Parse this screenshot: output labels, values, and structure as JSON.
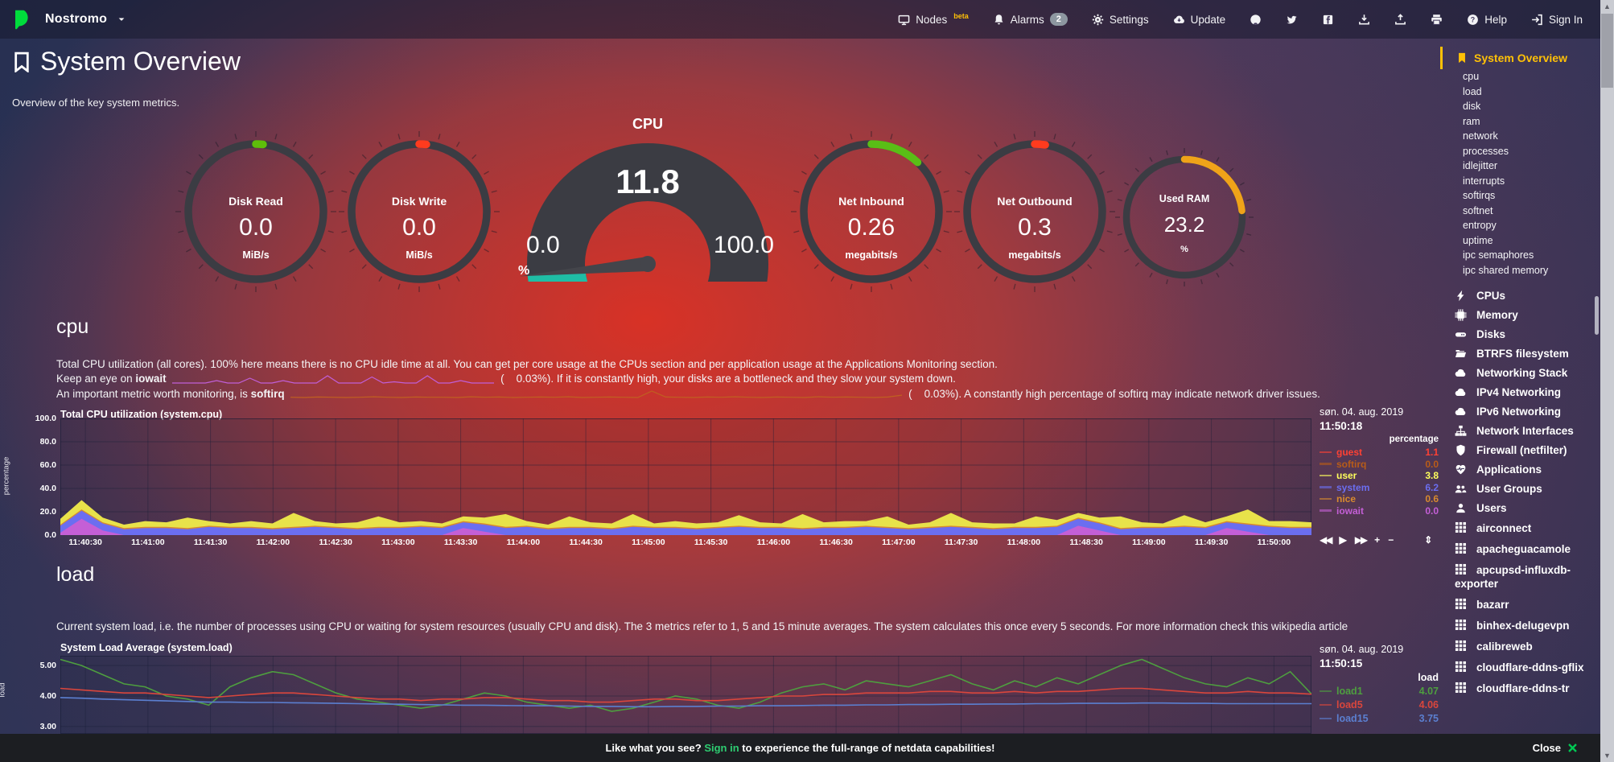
{
  "topbar": {
    "hostname": "Nostromo",
    "nodes_label": "Nodes",
    "nodes_beta": "beta",
    "alarms_label": "Alarms",
    "alarms_badge": "2",
    "settings_label": "Settings",
    "update_label": "Update",
    "help_label": "Help",
    "signin_label": "Sign In"
  },
  "header": {
    "title": "System Overview",
    "subtitle": "Overview of the key system metrics."
  },
  "gauges": {
    "disk_read": {
      "label": "Disk Read",
      "value": "0.0",
      "unit": "MiB/s",
      "color": "#5ebe0a",
      "pct": 1.6
    },
    "disk_write": {
      "label": "Disk Write",
      "value": "0.0",
      "unit": "MiB/s",
      "color": "#ff3b1e",
      "pct": 1.6
    },
    "net_inbound": {
      "label": "Net Inbound",
      "value": "0.26",
      "unit": "megabits/s",
      "color": "#5abe16",
      "pct": 12
    },
    "net_outbound": {
      "label": "Net Outbound",
      "value": "0.3",
      "unit": "megabits/s",
      "color": "#ff3b1e",
      "pct": 2.5
    },
    "used_ram": {
      "label": "Used RAM",
      "value": "23.2",
      "unit": "%",
      "color": "#efa319",
      "pct": 23.2
    },
    "cpu": {
      "label": "CPU",
      "value": "11.8",
      "min": "0.0",
      "max": "100.0",
      "unit": "%",
      "pct": 11.8,
      "fill": "#1fbda5",
      "body": "#3b3c43"
    }
  },
  "cpu_section": {
    "heading": "cpu",
    "p1": "Total CPU utilization (all cores). 100% here means there is no CPU idle time at all. You can get per core usage at the CPUs section and per application usage at the Applications Monitoring section.",
    "p2_pre": "Keep an eye on ",
    "p2_bold": "iowait",
    "p2_paren": "(    0.03%).",
    "p2_post": " If it is constantly high, your disks are a bottleneck and they slow your system down.",
    "p3_pre": "An important metric worth monitoring, is ",
    "p3_bold": "softirq",
    "p3_paren": "(    0.03%).",
    "p3_post": " A constantly high percentage of softirq may indicate network driver issues.",
    "iowait_spark": {
      "color": "#c05fd8",
      "values": [
        0,
        0,
        0,
        0,
        1,
        0,
        0,
        2,
        0,
        0,
        1,
        0,
        0,
        0,
        3,
        0,
        0,
        0,
        2.5,
        0,
        0.5,
        0,
        0,
        3,
        0,
        0,
        1,
        0,
        0,
        0
      ]
    },
    "softirq_spark": {
      "color": "#c06020",
      "values": [
        0.4,
        0.3,
        0.5,
        0.4,
        0.3,
        0.4,
        0.6,
        0.4,
        0.3,
        0.5,
        0.4,
        0.4,
        0.3,
        0.6,
        0.4,
        0.5,
        0.3,
        0.4,
        0.5,
        0.4,
        0.6,
        0.3,
        0.4,
        0.5,
        0.4,
        0.3,
        2.8,
        0.5,
        0.4,
        0.3,
        0.5,
        0.4,
        0.6,
        0.4,
        0.3,
        0.5,
        0.4,
        0.3,
        0.6,
        0.4,
        0.5,
        0.4,
        0.3,
        0.5,
        1.2
      ]
    }
  },
  "load_section": {
    "heading": "load",
    "p1": "Current system load, i.e. the number of processes using CPU or waiting for system resources (usually CPU and disk). The 3 metrics refer to 1, 5 and 15 minute averages. The system calculates this once every 5 seconds. For more information check this wikipedia article"
  },
  "chart_data": [
    {
      "type": "area",
      "stacked": true,
      "title": "Total CPU utilization (system.cpu)",
      "date": "søn. 04. aug. 2019",
      "time": "11:50:18",
      "unit": "percentage",
      "ylabel": "percentage",
      "ylim": [
        0,
        100
      ],
      "grid_values": [
        0,
        20,
        40,
        60,
        80,
        100
      ],
      "yticks": [
        {
          "label": "100.0",
          "value": 100
        },
        {
          "label": "80.0",
          "value": 80
        },
        {
          "label": "60.0",
          "value": 60
        },
        {
          "label": "40.0",
          "value": 40
        },
        {
          "label": "20.0",
          "value": 20
        },
        {
          "label": "0.0",
          "value": 0
        }
      ],
      "x_first_offset_s": 12,
      "x_step_s": 30,
      "x_span_s": 600,
      "xticks": [
        "11:40:30",
        "11:41:00",
        "11:41:30",
        "11:42:00",
        "11:42:30",
        "11:43:00",
        "11:43:30",
        "11:44:00",
        "11:44:30",
        "11:45:00",
        "11:45:30",
        "11:46:00",
        "11:46:30",
        "11:47:00",
        "11:47:30",
        "11:48:00",
        "11:48:30",
        "11:49:00",
        "11:49:30",
        "11:50:00"
      ],
      "legend": [
        {
          "name": "guest",
          "value": "1.1",
          "color": "#ff4133"
        },
        {
          "name": "softirq",
          "value": "0.0",
          "color": "#b85c18"
        },
        {
          "name": "user",
          "value": "3.8",
          "color": "#e8e24a",
          "emph": true
        },
        {
          "name": "system",
          "value": "6.2",
          "color": "#6b6ef0"
        },
        {
          "name": "nice",
          "value": "0.6",
          "color": "#d88a2e"
        },
        {
          "name": "iowait",
          "value": "0.0",
          "color": "#c45fd6"
        }
      ],
      "series": [
        {
          "name": "iowait",
          "color": "#c45fd6",
          "values": [
            2,
            14,
            4,
            0,
            0,
            0,
            0,
            0,
            0,
            0,
            0,
            0,
            0,
            0,
            0,
            0,
            0,
            0,
            0,
            6,
            3,
            0,
            0,
            0,
            0,
            0,
            0,
            0,
            0,
            0,
            0,
            0,
            0,
            0,
            0,
            0,
            0,
            0,
            0,
            0,
            0,
            0,
            0,
            0,
            0,
            0,
            0,
            0,
            8,
            4,
            0,
            0,
            0,
            0,
            0,
            6,
            3,
            0,
            0,
            0
          ]
        },
        {
          "name": "system",
          "color": "#6b6ef0",
          "values": [
            6,
            7,
            6,
            5,
            6,
            6,
            5,
            7,
            6,
            6,
            5,
            6,
            7,
            6,
            5,
            6,
            6,
            7,
            6,
            5,
            6,
            6,
            7,
            5,
            6,
            6,
            5,
            7,
            6,
            6,
            5,
            6,
            7,
            6,
            6,
            5,
            6,
            6,
            7,
            6,
            5,
            6,
            7,
            6,
            5,
            6,
            6,
            7,
            6,
            6,
            5,
            6,
            6,
            7,
            6,
            5,
            6,
            7,
            6,
            6
          ]
        },
        {
          "name": "nice",
          "color": "#d88a2e",
          "values": [
            1,
            1,
            1,
            1,
            1,
            1,
            1,
            1,
            1,
            1,
            1,
            1,
            1,
            1,
            1,
            1,
            1,
            1,
            1,
            1,
            1,
            1,
            1,
            1,
            1,
            1,
            1,
            1,
            1,
            1,
            1,
            1,
            1,
            1,
            1,
            1,
            1,
            1,
            1,
            1,
            1,
            1,
            1,
            1,
            1,
            1,
            1,
            1,
            1,
            1,
            1,
            1,
            1,
            1,
            1,
            1,
            1,
            1,
            1,
            1
          ]
        },
        {
          "name": "user",
          "color": "#e8e24a",
          "values": [
            5,
            8,
            4,
            3,
            5,
            4,
            9,
            4,
            3,
            5,
            4,
            12,
            4,
            3,
            5,
            9,
            4,
            4,
            3,
            4,
            5,
            11,
            4,
            3,
            9,
            4,
            4,
            10,
            3,
            5,
            4,
            4,
            9,
            4,
            3,
            12,
            4,
            5,
            4,
            9,
            3,
            4,
            11,
            4,
            4,
            3,
            9,
            5,
            4,
            4,
            10,
            4,
            3,
            9,
            4,
            4,
            12,
            4,
            5,
            4
          ]
        }
      ]
    },
    {
      "type": "line",
      "title": "System Load Average (system.load)",
      "date": "søn. 04. aug. 2019",
      "time": "11:50:15",
      "unit": "load",
      "ylabel": "load",
      "ylim": [
        2.76,
        5.32
      ],
      "grid_values": [
        3,
        4,
        5
      ],
      "yticks": [
        {
          "label": "5.00",
          "value": 5
        },
        {
          "label": "4.00",
          "value": 4
        },
        {
          "label": "3.00",
          "value": 3
        }
      ],
      "xticks": [],
      "legend": [
        {
          "name": "load1",
          "value": "4.07",
          "color": "#4e9e3f"
        },
        {
          "name": "load5",
          "value": "4.06",
          "color": "#d9463c"
        },
        {
          "name": "load15",
          "value": "3.75",
          "color": "#5b7fd0"
        }
      ],
      "series": [
        {
          "name": "load1",
          "color": "#4e9e3f",
          "values": [
            5.2,
            5.0,
            4.7,
            4.4,
            4.3,
            4.0,
            3.9,
            3.7,
            4.3,
            4.6,
            4.8,
            4.7,
            4.4,
            4.1,
            3.9,
            3.8,
            3.7,
            3.6,
            3.7,
            3.9,
            4.1,
            4.0,
            3.8,
            3.7,
            3.6,
            3.7,
            3.5,
            3.6,
            3.8,
            4.0,
            3.9,
            3.7,
            3.6,
            3.8,
            4.1,
            4.3,
            4.4,
            4.2,
            4.5,
            4.4,
            4.3,
            4.5,
            4.7,
            4.4,
            4.2,
            4.5,
            4.3,
            4.6,
            4.4,
            4.7,
            5.0,
            5.2,
            4.9,
            4.6,
            4.4,
            4.3,
            4.6,
            4.4,
            4.8,
            4.07
          ]
        },
        {
          "name": "load5",
          "color": "#d9463c",
          "values": [
            4.25,
            4.2,
            4.15,
            4.1,
            4.1,
            4.05,
            4.0,
            3.95,
            4.0,
            4.05,
            4.1,
            4.1,
            4.05,
            4.0,
            3.95,
            3.9,
            3.9,
            3.85,
            3.9,
            3.9,
            3.95,
            3.95,
            3.9,
            3.85,
            3.85,
            3.8,
            3.8,
            3.85,
            3.9,
            3.9,
            3.85,
            3.85,
            3.9,
            3.95,
            4.0,
            4.0,
            4.05,
            4.05,
            4.1,
            4.1,
            4.1,
            4.15,
            4.15,
            4.1,
            4.1,
            4.15,
            4.1,
            4.15,
            4.15,
            4.2,
            4.25,
            4.25,
            4.2,
            4.15,
            4.1,
            4.1,
            4.15,
            4.1,
            4.1,
            4.06
          ]
        },
        {
          "name": "load15",
          "color": "#5b7fd0",
          "values": [
            3.95,
            3.93,
            3.9,
            3.88,
            3.86,
            3.84,
            3.82,
            3.8,
            3.8,
            3.79,
            3.79,
            3.78,
            3.77,
            3.76,
            3.75,
            3.74,
            3.73,
            3.72,
            3.71,
            3.7,
            3.7,
            3.69,
            3.68,
            3.68,
            3.67,
            3.66,
            3.66,
            3.65,
            3.65,
            3.66,
            3.66,
            3.67,
            3.67,
            3.68,
            3.68,
            3.69,
            3.7,
            3.7,
            3.71,
            3.71,
            3.72,
            3.72,
            3.73,
            3.73,
            3.74,
            3.74,
            3.75,
            3.75,
            3.76,
            3.76,
            3.76,
            3.77,
            3.77,
            3.76,
            3.76,
            3.75,
            3.75,
            3.75,
            3.75,
            3.75
          ]
        }
      ]
    }
  ],
  "chart_toolbar": {
    "back": "◀◀",
    "play": "▶",
    "forward": "▶▶",
    "zoom_in": "+",
    "zoom_out": "−",
    "resize": "⇕"
  },
  "sidebar": {
    "active_label": "System Overview",
    "sub_items": [
      "cpu",
      "load",
      "disk",
      "ram",
      "network",
      "processes",
      "idlejitter",
      "interrupts",
      "softirqs",
      "softnet",
      "entropy",
      "uptime",
      "ipc semaphores",
      "ipc shared memory"
    ],
    "sections": [
      {
        "icon": "bolt",
        "label": "CPUs"
      },
      {
        "icon": "chip",
        "label": "Memory"
      },
      {
        "icon": "hdd",
        "label": "Disks"
      },
      {
        "icon": "folder",
        "label": "BTRFS filesystem"
      },
      {
        "icon": "cloud",
        "label": "Networking Stack"
      },
      {
        "icon": "cloud",
        "label": "IPv4 Networking"
      },
      {
        "icon": "cloud",
        "label": "IPv6 Networking"
      },
      {
        "icon": "sitemap",
        "label": "Network Interfaces"
      },
      {
        "icon": "shield",
        "label": "Firewall (netfilter)"
      },
      {
        "icon": "heartbeat",
        "label": "Applications"
      },
      {
        "icon": "users",
        "label": "User Groups"
      },
      {
        "icon": "user",
        "label": "Users"
      }
    ],
    "apps": [
      "airconnect",
      "apacheguacamole",
      "apcupsd-influxdb-exporter",
      "bazarr",
      "binhex-delugevpn",
      "calibreweb",
      "cloudflare-ddns-gflix",
      "cloudflare-ddns-tr"
    ]
  },
  "bottom_bar": {
    "pre": "Like what you see? ",
    "link": "Sign in",
    "post": " to experience the full-range of netdata capabilities!",
    "close": "Close"
  },
  "scrollbar": {
    "up": "▲",
    "down": "▼"
  }
}
